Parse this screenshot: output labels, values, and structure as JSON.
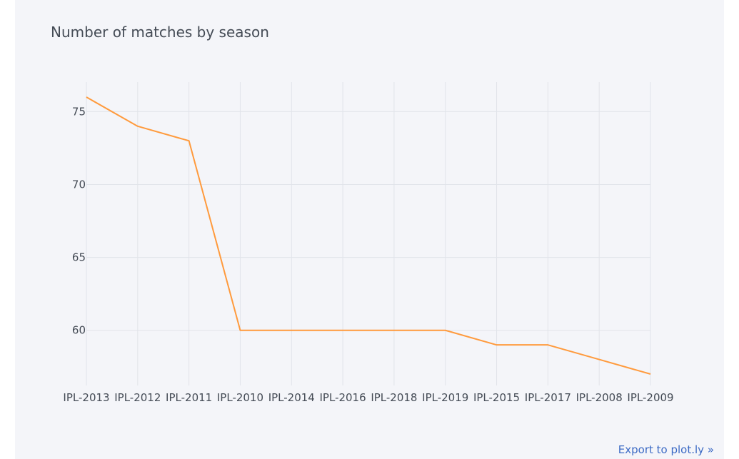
{
  "colors": {
    "background": "#f4f5f9",
    "gridline": "#e1e4ea",
    "series_line": "#ff9a3c",
    "text": "#444b55",
    "link": "#3d6bc5"
  },
  "chart_data": {
    "type": "line",
    "title": "Number of matches by season",
    "xlabel": "",
    "ylabel": "",
    "categories": [
      "IPL-2013",
      "IPL-2012",
      "IPL-2011",
      "IPL-2010",
      "IPL-2014",
      "IPL-2016",
      "IPL-2018",
      "IPL-2019",
      "IPL-2015",
      "IPL-2017",
      "IPL-2008",
      "IPL-2009"
    ],
    "values": [
      76,
      74,
      73,
      60,
      60,
      60,
      60,
      60,
      59,
      59,
      58,
      57
    ],
    "ylim": [
      57,
      76
    ],
    "yticks": [
      60,
      65,
      70,
      75
    ],
    "grid": true,
    "legend": "none"
  },
  "export_link": {
    "label": "Export to plot.ly »"
  }
}
